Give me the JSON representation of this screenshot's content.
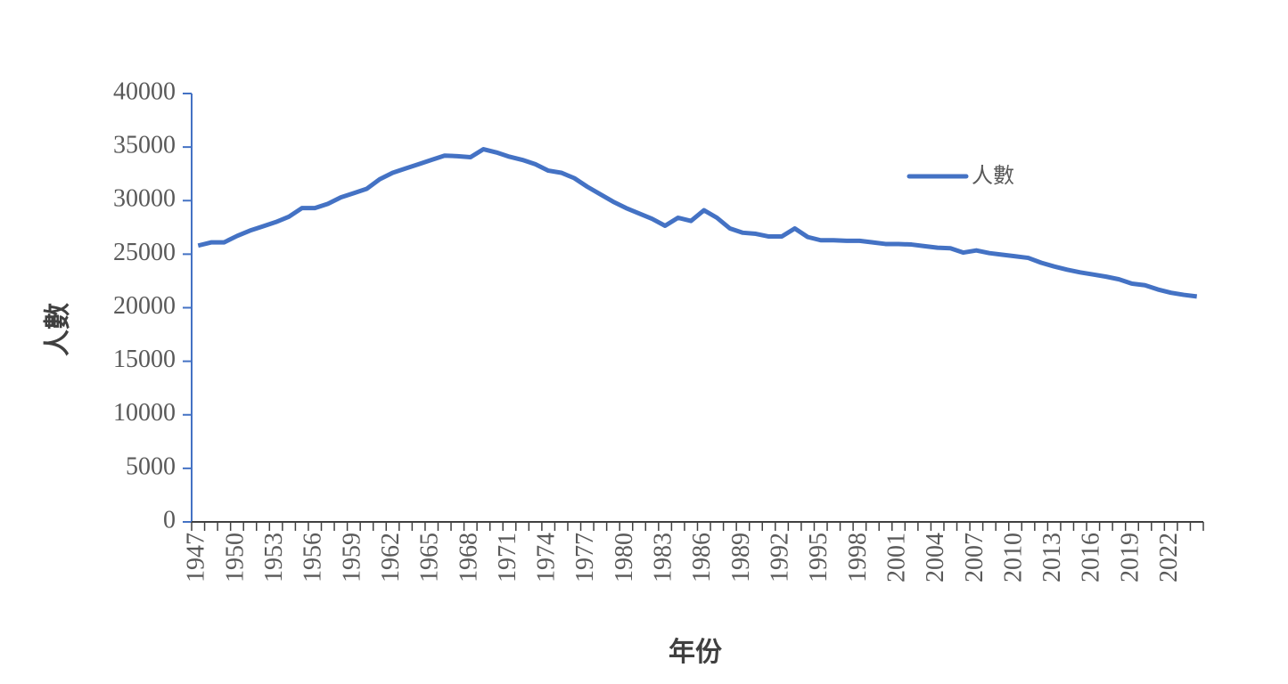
{
  "chart_data": {
    "type": "line",
    "y_label": "人數",
    "x_label": "年份",
    "categories": [
      "1947",
      null,
      null,
      "1950",
      null,
      null,
      "1953",
      null,
      null,
      "1956",
      null,
      null,
      "1959",
      null,
      null,
      "1962",
      null,
      null,
      "1965",
      null,
      null,
      "1968",
      null,
      null,
      "1971",
      null,
      null,
      "1974",
      null,
      null,
      "1977",
      null,
      null,
      "1980",
      null,
      null,
      "1983",
      null,
      null,
      "1986",
      null,
      null,
      "1989",
      null,
      null,
      "1992",
      null,
      null,
      "1995",
      null,
      null,
      "1998",
      null,
      null,
      "2001",
      null,
      null,
      "2004",
      null,
      null,
      "2007",
      null,
      null,
      "2010",
      null,
      null,
      "2013",
      null,
      null,
      "2016",
      null,
      null,
      "2019",
      null,
      null,
      "2022",
      null,
      null
    ],
    "series": [
      {
        "name": "人數",
        "color": "#4472c4",
        "values": [
          25800,
          26100,
          26100,
          26700,
          27200,
          27600,
          28000,
          28500,
          29300,
          29300,
          29700,
          30300,
          30700,
          31100,
          32000,
          32600,
          33000,
          33400,
          33800,
          34200,
          34150,
          34050,
          34800,
          34500,
          34100,
          33800,
          33400,
          32800,
          32600,
          32100,
          31300,
          30600,
          29900,
          29300,
          28800,
          28300,
          27650,
          28400,
          28100,
          29100,
          28400,
          27400,
          27000,
          26900,
          26650,
          26650,
          27400,
          26600,
          26300,
          26300,
          26250,
          26250,
          26100,
          25950,
          25950,
          25900,
          25750,
          25600,
          25550,
          25150,
          25350,
          25100,
          24950,
          24800,
          24650,
          24200,
          23850,
          23550,
          23300,
          23100,
          22900,
          22650,
          22250,
          22100,
          21700,
          21400,
          21200,
          21050
        ]
      }
    ],
    "ylim": [
      0,
      40000
    ],
    "yticks": [
      0,
      5000,
      10000,
      15000,
      20000,
      25000,
      30000,
      35000,
      40000
    ],
    "grid": false,
    "legend": "top-right"
  }
}
